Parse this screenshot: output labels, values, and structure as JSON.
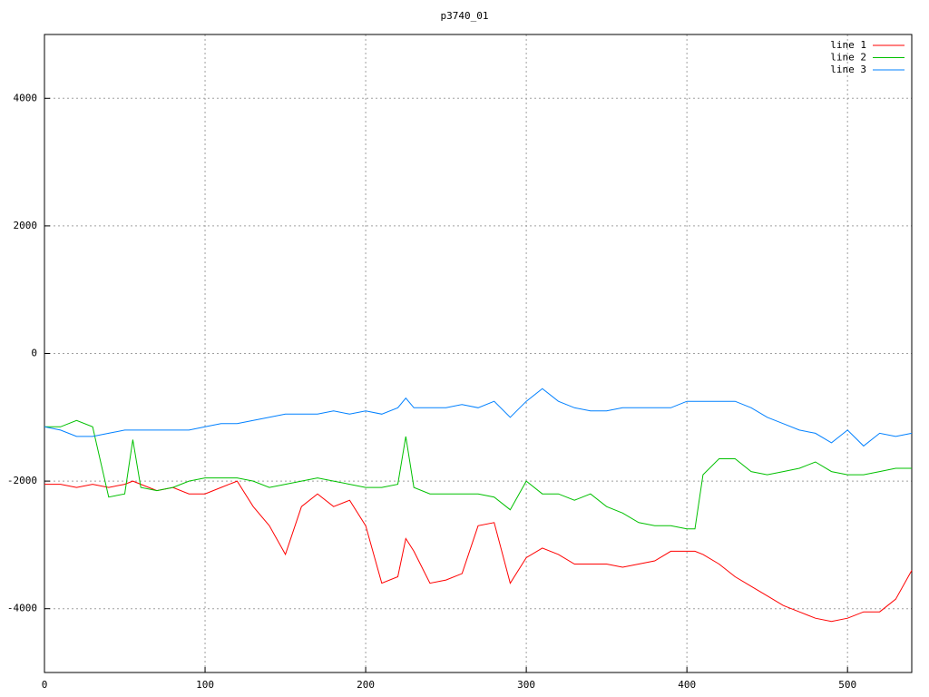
{
  "chart_data": {
    "type": "line",
    "title": "p3740_01",
    "x": [
      0,
      10,
      20,
      30,
      40,
      50,
      55,
      60,
      70,
      80,
      90,
      100,
      110,
      120,
      130,
      140,
      150,
      160,
      170,
      180,
      190,
      200,
      210,
      220,
      225,
      230,
      240,
      250,
      260,
      270,
      280,
      290,
      300,
      310,
      320,
      330,
      340,
      350,
      360,
      370,
      380,
      390,
      400,
      405,
      410,
      420,
      430,
      440,
      450,
      460,
      470,
      480,
      490,
      500,
      510,
      520,
      530,
      540
    ],
    "series": [
      {
        "name": "line 1",
        "color": "#ff0000",
        "values": [
          -2050,
          -2050,
          -2100,
          -2050,
          -2100,
          -2050,
          -2000,
          -2050,
          -2150,
          -2100,
          -2200,
          -2200,
          -2100,
          -2000,
          -2400,
          -2700,
          -3150,
          -2400,
          -2200,
          -2400,
          -2300,
          -2700,
          -3600,
          -3500,
          -2900,
          -3100,
          -3600,
          -3550,
          -3450,
          -2700,
          -2650,
          -3600,
          -3200,
          -3050,
          -3150,
          -3300,
          -3300,
          -3300,
          -3350,
          -3300,
          -3250,
          -3100,
          -3100,
          -3100,
          -3150,
          -3300,
          -3500,
          -3650,
          -3800,
          -3950,
          -4050,
          -4150,
          -4200,
          -4150,
          -4050,
          -4050,
          -3850,
          -3400
        ]
      },
      {
        "name": "line 2",
        "color": "#00c000",
        "values": [
          -1150,
          -1150,
          -1050,
          -1150,
          -2250,
          -2200,
          -1350,
          -2100,
          -2150,
          -2100,
          -2000,
          -1950,
          -1950,
          -1950,
          -2000,
          -2100,
          -2050,
          -2000,
          -1950,
          -2000,
          -2050,
          -2100,
          -2100,
          -2050,
          -1300,
          -2100,
          -2200,
          -2200,
          -2200,
          -2200,
          -2250,
          -2450,
          -2000,
          -2200,
          -2200,
          -2300,
          -2200,
          -2400,
          -2500,
          -2650,
          -2700,
          -2700,
          -2750,
          -2750,
          -1900,
          -1650,
          -1650,
          -1850,
          -1900,
          -1850,
          -1800,
          -1700,
          -1850,
          -1900,
          -1900,
          -1850,
          -1800,
          -1800
        ]
      },
      {
        "name": "line 3",
        "color": "#0080ff",
        "values": [
          -1150,
          -1200,
          -1300,
          -1300,
          -1250,
          -1200,
          -1200,
          -1200,
          -1200,
          -1200,
          -1200,
          -1150,
          -1100,
          -1100,
          -1050,
          -1000,
          -950,
          -950,
          -950,
          -900,
          -950,
          -900,
          -950,
          -850,
          -700,
          -850,
          -850,
          -850,
          -800,
          -850,
          -750,
          -1000,
          -750,
          -550,
          -750,
          -850,
          -900,
          -900,
          -850,
          -850,
          -850,
          -850,
          -750,
          -750,
          -750,
          -750,
          -750,
          -850,
          -1000,
          -1100,
          -1200,
          -1250,
          -1400,
          -1200,
          -1450,
          -1250,
          -1300,
          -1250
        ]
      }
    ],
    "xlim": [
      0,
      540
    ],
    "xticks": [
      0,
      100,
      200,
      300,
      400,
      500
    ],
    "ylim": [
      -5000,
      5000
    ],
    "yticks": [
      -4000,
      -2000,
      0,
      2000,
      4000
    ],
    "grid": true,
    "legend": "top-right"
  }
}
